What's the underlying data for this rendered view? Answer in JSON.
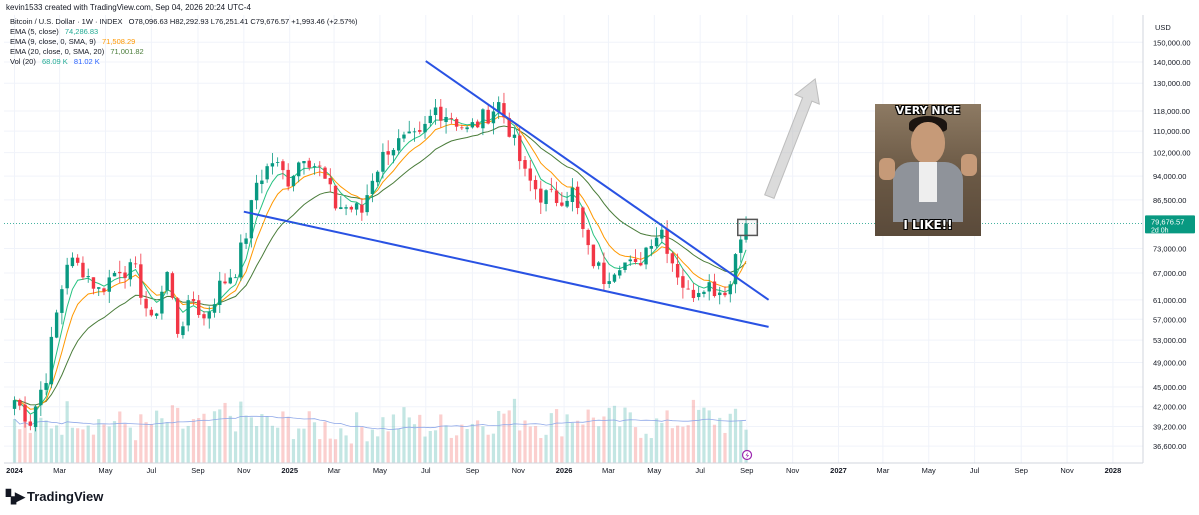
{
  "header": {
    "created_by": "kevin1533 created with TradingView.com, Sep 04, 2026 20:24 UTC-4",
    "symbol": "Bitcoin / U.S. Dollar · 1W · INDEX",
    "ohlc": "O78,096.63  H82,292.93  L76,251.41  C79,676.57  +1,993.46 (+2.57%)"
  },
  "indicators": [
    {
      "name": "EMA (5, close)",
      "value": "74,286.83",
      "color": "#22ab94"
    },
    {
      "name": "EMA (9, close, 0, SMA, 9)",
      "value": "71,508.29",
      "color": "#ff9800"
    },
    {
      "name": "EMA (20, close, 0, SMA, 20)",
      "value": "71,001.82",
      "color": "#4a7c3a"
    },
    {
      "name": "Vol (20)",
      "value": "68.09 K",
      "value2": "81.02 K",
      "color": "#22ab94",
      "color2": "#2962ff"
    }
  ],
  "brand": {
    "name": "TradingView"
  },
  "meme": {
    "top_text": "VERY NICE",
    "bottom_text": "I LIKE!!"
  },
  "chart_data": {
    "type": "candlestick",
    "title": "Bitcoin / U.S. Dollar · 1W · INDEX",
    "currency": "USD",
    "scale": "log",
    "y_range": [
      34500,
      165000
    ],
    "y_ticks": [
      "150,000.00",
      "140,000.00",
      "130,000.00",
      "118,000.00",
      "110,000.00",
      "102,000.00",
      "94,000.00",
      "86,500.00",
      "79,676.57",
      "73,000.00",
      "67,000.00",
      "61,000.00",
      "57,000.00",
      "53,000.00",
      "49,000.00",
      "45,000.00",
      "42,000.00",
      "39,200.00",
      "36,600.00"
    ],
    "last_price": {
      "value": 79676.57,
      "label": "79,676.57",
      "countdown": "2d 0h"
    },
    "x_ticks": [
      "2024",
      "Mar",
      "May",
      "Jul",
      "Sep",
      "Nov",
      "2025",
      "Mar",
      "May",
      "Jul",
      "Sep",
      "Nov",
      "2026",
      "Mar",
      "May",
      "Jul",
      "Sep",
      "Nov",
      "2027",
      "Mar",
      "May",
      "Jul",
      "Sep",
      "Nov",
      "2028"
    ],
    "bold_x_ticks": [
      "2024",
      "2025",
      "2026",
      "2027",
      "2028"
    ],
    "close_path": [
      [
        "2024-01-01",
        43000
      ],
      [
        "2024-01-22",
        40000
      ],
      [
        "2024-02-12",
        47000
      ],
      [
        "2024-02-26",
        58000
      ],
      [
        "2024-03-11",
        70000
      ],
      [
        "2024-04-01",
        68000
      ],
      [
        "2024-04-22",
        63000
      ],
      [
        "2024-05-20",
        68500
      ],
      [
        "2024-06-10",
        67000
      ],
      [
        "2024-07-01",
        56000
      ],
      [
        "2024-07-22",
        67000
      ],
      [
        "2024-08-05",
        55000
      ],
      [
        "2024-08-26",
        61000
      ],
      [
        "2024-09-09",
        57000
      ],
      [
        "2024-09-30",
        64000
      ],
      [
        "2024-10-21",
        68000
      ],
      [
        "2024-11-04",
        77000
      ],
      [
        "2024-11-18",
        92000
      ],
      [
        "2024-12-09",
        99000
      ],
      [
        "2024-12-30",
        93000
      ],
      [
        "2025-01-20",
        102000
      ],
      [
        "2025-02-10",
        96000
      ],
      [
        "2025-03-03",
        85000
      ],
      [
        "2025-03-24",
        84000
      ],
      [
        "2025-04-07",
        83000
      ],
      [
        "2025-04-21",
        94000
      ],
      [
        "2025-05-12",
        104000
      ],
      [
        "2025-06-02",
        106000
      ],
      [
        "2025-06-23",
        107000
      ],
      [
        "2025-07-14",
        119000
      ],
      [
        "2025-08-04",
        116000
      ],
      [
        "2025-08-25",
        110000
      ],
      [
        "2025-09-15",
        115000
      ],
      [
        "2025-10-06",
        121000
      ],
      [
        "2025-10-20",
        111000
      ],
      [
        "2025-11-10",
        94000
      ],
      [
        "2025-12-01",
        88000
      ],
      [
        "2025-12-22",
        87000
      ],
      [
        "2026-01-12",
        89000
      ],
      [
        "2026-02-02",
        72000
      ],
      [
        "2026-02-23",
        66000
      ],
      [
        "2026-03-16",
        70000
      ],
      [
        "2026-04-06",
        68000
      ],
      [
        "2026-04-27",
        76000
      ],
      [
        "2026-05-11",
        78000
      ],
      [
        "2026-05-25",
        70000
      ],
      [
        "2026-06-15",
        62000
      ],
      [
        "2026-07-06",
        65000
      ],
      [
        "2026-07-27",
        63000
      ],
      [
        "2026-08-10",
        64500
      ],
      [
        "2026-08-17",
        72000
      ],
      [
        "2026-08-24",
        78000
      ],
      [
        "2026-08-31",
        79677
      ]
    ],
    "volume_label": "Vol (20)",
    "volume_profile": [
      0.22,
      0.25,
      0.3,
      0.38,
      0.32,
      0.28,
      0.25,
      0.22,
      0.26,
      0.3,
      0.24,
      0.22,
      0.38,
      0.34,
      0.28,
      0.24,
      0.26,
      0.22,
      0.22,
      0.2,
      0.22,
      0.24,
      0.28,
      0.3,
      0.24,
      0.22,
      0.26,
      0.3,
      0.32,
      0.4,
      0.34,
      0.28,
      0.3,
      0.36,
      0.34,
      0.3,
      0.28,
      0.26,
      0.24,
      0.3,
      0.38,
      0.34,
      0.3,
      0.26
    ],
    "annotations": [
      {
        "kind": "trendline",
        "label": "falling wedge upper",
        "points": [
          [
            "2025-07-01",
            140500
          ],
          [
            "2026-09-30",
            61000
          ]
        ]
      },
      {
        "kind": "trendline",
        "label": "falling wedge lower",
        "points": [
          [
            "2024-11-01",
            83000
          ],
          [
            "2026-09-30",
            55500
          ]
        ]
      },
      {
        "kind": "rectangle",
        "range": [
          [
            "2026-08-20",
            80800
          ],
          [
            "2026-09-15",
            76400
          ]
        ]
      },
      {
        "kind": "arrow",
        "from": [
          "2026-10-01",
          87500
        ],
        "to": [
          "2026-12-01",
          132000
        ]
      }
    ]
  }
}
